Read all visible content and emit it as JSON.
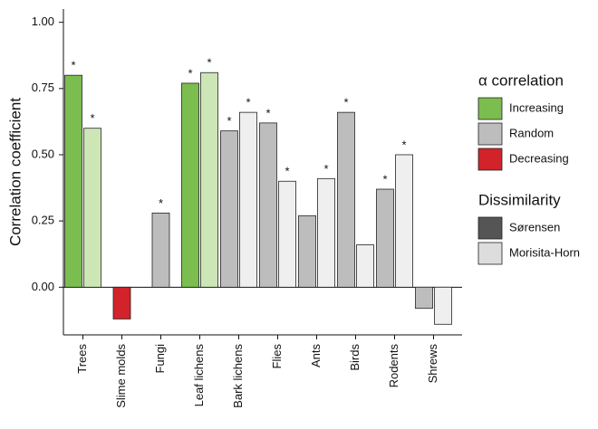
{
  "chart_data": {
    "type": "bar",
    "ylabel": "Correlation coefficient",
    "categories": [
      "Trees",
      "Slime molds",
      "Fungi",
      "Leaf lichens",
      "Bark lichens",
      "Flies",
      "Ants",
      "Birds",
      "Rodents",
      "Shrews"
    ],
    "series": [
      {
        "name": "Sørensen",
        "color": "#555555",
        "values": [
          0.8,
          -0.12,
          0.28,
          0.77,
          0.59,
          0.62,
          0.27,
          0.66,
          0.37,
          -0.08
        ],
        "colors": [
          "#7cbd4f",
          "#d2232a",
          "#bdbdbd",
          "#7cbd4f",
          "#bdbdbd",
          "#bdbdbd",
          "#bdbdbd",
          "#bdbdbd",
          "#bdbdbd",
          "#bdbdbd"
        ],
        "marks": [
          "*",
          null,
          "*",
          "*",
          "*",
          "*",
          null,
          "*",
          "*",
          null
        ]
      },
      {
        "name": "Morisita-Horn",
        "color": "#dddddd",
        "values": [
          0.6,
          null,
          null,
          0.81,
          0.66,
          0.4,
          0.41,
          0.16,
          0.5,
          -0.14
        ],
        "colors": [
          "#cde6b6",
          null,
          null,
          "#cde6b6",
          "#efefef",
          "#efefef",
          "#efefef",
          "#efefef",
          "#efefef",
          "#efefef"
        ],
        "marks": [
          "*",
          null,
          null,
          "*",
          "*",
          "*",
          "*",
          null,
          "*",
          null
        ]
      }
    ],
    "ylim": [
      -0.18,
      1.05
    ],
    "yticks": [
      {
        "value": 0,
        "label": "0.00"
      },
      {
        "value": 0.25,
        "label": "0.25"
      },
      {
        "value": 0.5,
        "label": "0.50"
      },
      {
        "value": 0.75,
        "label": "0.75"
      },
      {
        "value": 1,
        "label": "1.00"
      }
    ],
    "legend": [
      {
        "title": "α correlation",
        "items": [
          {
            "label": "Increasing",
            "color": "#7cbd4f"
          },
          {
            "label": "Random",
            "color": "#bdbdbd"
          },
          {
            "label": "Decreasing",
            "color": "#d2232a"
          }
        ]
      },
      {
        "title": "Dissimilarity",
        "items": [
          {
            "label": "Sørensen",
            "color": "#555555"
          },
          {
            "label": "Morisita-Horn",
            "color": "#dddddd"
          }
        ]
      }
    ],
    "legend_position": "right"
  }
}
